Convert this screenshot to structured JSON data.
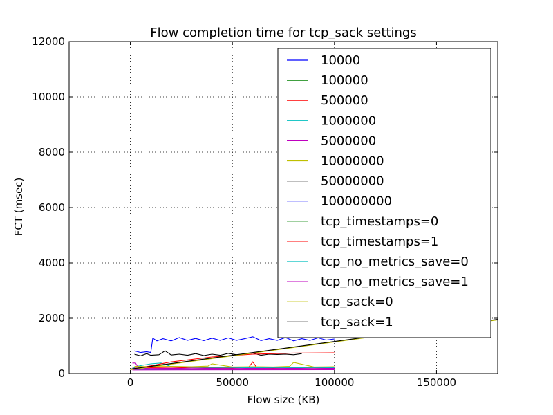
{
  "chart_data": {
    "type": "line",
    "title": "Flow completion time for tcp_sack settings",
    "xlabel": "Flow size (KB)",
    "ylabel": "FCT (msec)",
    "xlim": [
      -30000,
      180000
    ],
    "ylim": [
      0,
      12000
    ],
    "xticks": [
      0,
      50000,
      100000,
      150000
    ],
    "xtick_labels": [
      "0",
      "50000",
      "100000",
      "150000"
    ],
    "yticks": [
      0,
      2000,
      4000,
      6000,
      8000,
      10000,
      12000
    ],
    "ytick_labels": [
      "0",
      "2000",
      "4000",
      "6000",
      "8000",
      "10000",
      "12000"
    ],
    "grid": true,
    "legend_position": "upper right",
    "series": [
      {
        "name": "10000",
        "color": "#0000ff",
        "x": [
          2000,
          5000,
          8000,
          10000,
          11000,
          13000,
          16000,
          20000,
          24000,
          28000,
          32000,
          36000,
          40000,
          44000,
          48000,
          52000,
          56000,
          60000,
          64000,
          68000,
          72000,
          76000,
          80000,
          84000,
          88000,
          92000,
          96000,
          100000
        ],
        "y": [
          820,
          760,
          790,
          760,
          1280,
          1180,
          1260,
          1180,
          1300,
          1200,
          1270,
          1190,
          1280,
          1200,
          1290,
          1200,
          1260,
          1330,
          1190,
          1260,
          1200,
          1300,
          1180,
          1260,
          1200,
          1290,
          1210,
          1250
        ]
      },
      {
        "name": "100000",
        "color": "#008000",
        "x": [
          1000,
          10000,
          20000,
          30000,
          40000,
          50000,
          60000,
          70000,
          80000,
          90000,
          100000
        ],
        "y": [
          150,
          160,
          170,
          160,
          165,
          170,
          160,
          165,
          170,
          160,
          165
        ]
      },
      {
        "name": "500000",
        "color": "#ff0000",
        "x": [
          1000,
          10000,
          20000,
          30000,
          40000,
          50000,
          58000,
          60000,
          62000,
          70000,
          80000,
          90000,
          100000
        ],
        "y": [
          200,
          210,
          200,
          220,
          210,
          200,
          230,
          420,
          210,
          200,
          220,
          210,
          200
        ]
      },
      {
        "name": "1000000",
        "color": "#00bfbf",
        "x": [
          1000,
          3000,
          6000,
          10000,
          15000,
          20000,
          30000,
          40000,
          50000,
          60000,
          70000,
          80000,
          90000,
          100000
        ],
        "y": [
          180,
          260,
          300,
          350,
          380,
          250,
          230,
          220,
          220,
          210,
          220,
          210,
          220,
          210
        ]
      },
      {
        "name": "5000000",
        "color": "#bf00bf",
        "x": [
          1000,
          2500,
          4000,
          10000,
          20000,
          30000,
          40000,
          50000,
          60000,
          70000,
          80000,
          90000,
          100000
        ],
        "y": [
          380,
          380,
          200,
          180,
          190,
          180,
          190,
          180,
          190,
          180,
          190,
          180,
          190
        ]
      },
      {
        "name": "10000000",
        "color": "#bfbf00",
        "x": [
          2000,
          10000,
          20000,
          30000,
          38000,
          40000,
          50000,
          60000,
          70000,
          78000,
          80000,
          90000,
          100000
        ],
        "y": [
          260,
          250,
          260,
          250,
          270,
          350,
          240,
          250,
          240,
          260,
          400,
          240,
          250
        ]
      },
      {
        "name": "50000000",
        "color": "#000000",
        "x": [
          2000,
          5000,
          8000,
          10000,
          14000,
          17000,
          20000,
          24000,
          28000,
          32000,
          36000,
          40000,
          44000,
          48000,
          52000,
          56000,
          60000,
          64000,
          68000,
          72000,
          76000,
          80000,
          84000
        ],
        "y": [
          700,
          640,
          720,
          660,
          680,
          820,
          670,
          700,
          660,
          720,
          650,
          700,
          660,
          730,
          680,
          700,
          740,
          660,
          700,
          690,
          700,
          680,
          720
        ]
      },
      {
        "name": "100000000",
        "color": "#0000ff",
        "x": [
          1000,
          100000
        ],
        "y": [
          150,
          160
        ]
      },
      {
        "name": "tcp_timestamps=0",
        "color": "#008000",
        "x": [
          0,
          180000
        ],
        "y": [
          150,
          1950
        ]
      },
      {
        "name": "tcp_timestamps=1",
        "color": "#ff0000",
        "x": [
          0,
          20000,
          40000,
          60000,
          80000,
          100000
        ],
        "y": [
          140,
          420,
          600,
          700,
          740,
          750
        ]
      },
      {
        "name": "tcp_no_metrics_save=0",
        "color": "#00bfbf",
        "x": [
          1000,
          100000
        ],
        "y": [
          140,
          150
        ]
      },
      {
        "name": "tcp_no_metrics_save=1",
        "color": "#bf00bf",
        "x": [
          1000,
          100000
        ],
        "y": [
          130,
          140
        ]
      },
      {
        "name": "tcp_sack=0",
        "color": "#bfbf00",
        "x": [
          0,
          180000
        ],
        "y": [
          140,
          1940
        ]
      },
      {
        "name": "tcp_sack=1",
        "color": "#000000",
        "x": [
          0,
          180000
        ],
        "y": [
          160,
          1960
        ]
      }
    ]
  }
}
